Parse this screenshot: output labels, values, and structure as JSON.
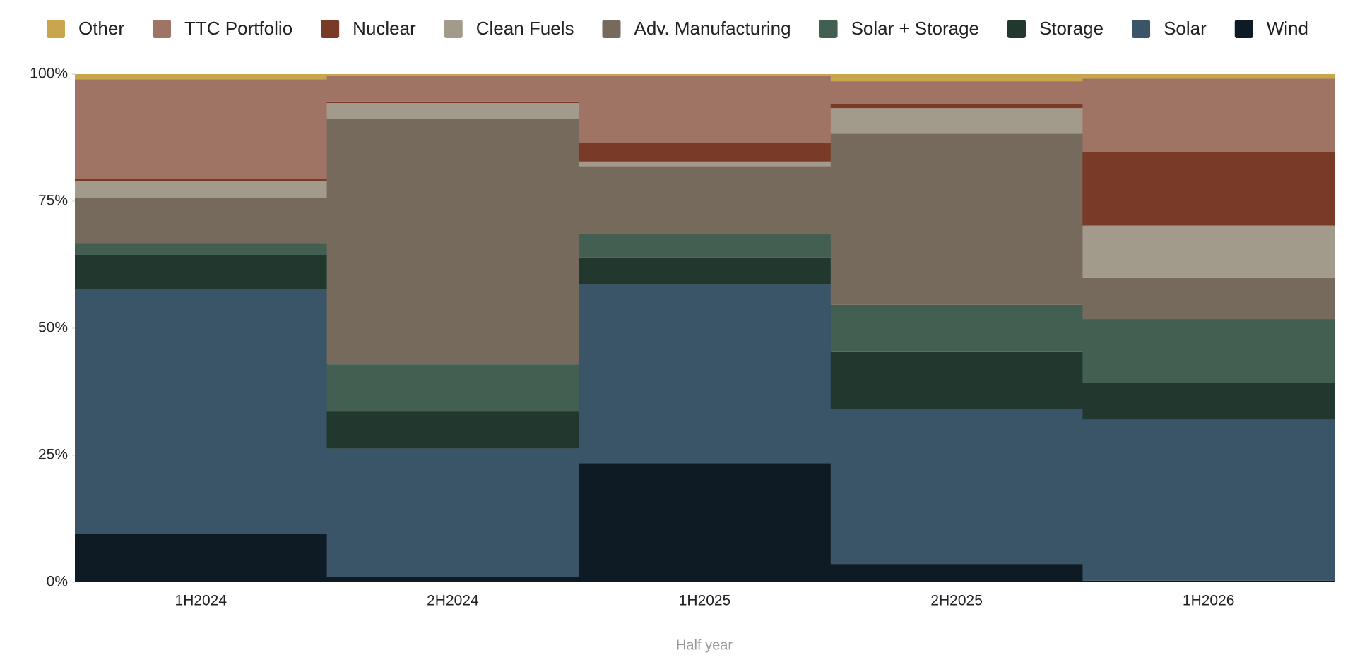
{
  "chart_data": {
    "type": "stacked_step_area",
    "x_label": "Half year",
    "categories": [
      "1H2024",
      "2H2024",
      "1H2025",
      "2H2025",
      "1H2026"
    ],
    "series": [
      {
        "name": "Other",
        "color": "#c9a54e",
        "values": [
          1.0,
          0.3,
          0.3,
          1.4,
          0.9
        ]
      },
      {
        "name": "TTC Portfolio",
        "color": "#a07464",
        "values": [
          19.6,
          5.1,
          13.3,
          4.5,
          14.4
        ]
      },
      {
        "name": "Nuclear",
        "color": "#7a3a28",
        "values": [
          0.4,
          0.3,
          3.6,
          0.8,
          14.5
        ]
      },
      {
        "name": "Clean Fuels",
        "color": "#a29a8b",
        "values": [
          3.4,
          3.1,
          0.9,
          5.0,
          10.3
        ]
      },
      {
        "name": "Adv. Manufacturing",
        "color": "#766a5d",
        "values": [
          9.0,
          48.3,
          13.2,
          33.7,
          8.1
        ]
      },
      {
        "name": "Solar + Storage",
        "color": "#425f52",
        "values": [
          2.1,
          9.3,
          4.8,
          9.3,
          12.6
        ]
      },
      {
        "name": "Storage",
        "color": "#22382f",
        "values": [
          6.8,
          7.3,
          5.2,
          11.2,
          7.2
        ]
      },
      {
        "name": "Solar",
        "color": "#3a5468",
        "values": [
          48.2,
          25.3,
          35.3,
          30.5,
          31.7
        ]
      },
      {
        "name": "Wind",
        "color": "#0f1b24",
        "values": [
          9.5,
          1.0,
          23.4,
          3.6,
          0.3
        ]
      }
    ],
    "ylim": [
      0,
      100
    ],
    "yticks": [
      {
        "value": 0,
        "label": "0%"
      },
      {
        "value": 25,
        "label": "25%"
      },
      {
        "value": 50,
        "label": "50%"
      },
      {
        "value": 75,
        "label": "75%"
      },
      {
        "value": 100,
        "label": "100%"
      }
    ],
    "legend": "top"
  }
}
